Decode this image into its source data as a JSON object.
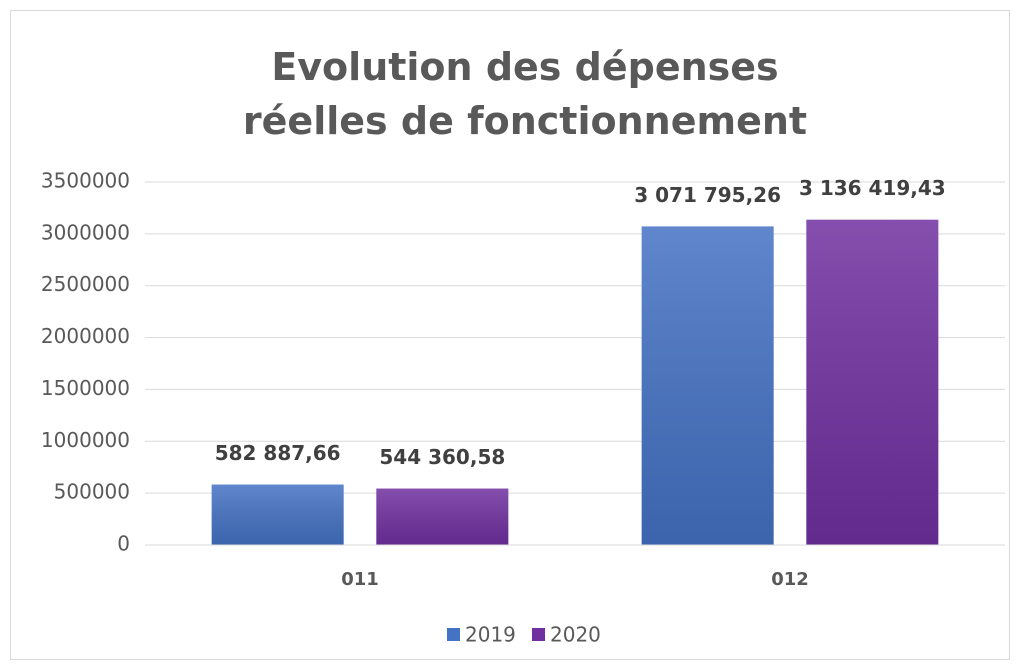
{
  "chart_data": {
    "type": "bar",
    "title": "Evolution des dépenses réelles de fonctionnement",
    "categories": [
      "011",
      "012"
    ],
    "series": [
      {
        "name": "2019",
        "color": "#4472c4",
        "values": [
          582887.66,
          3071795.26
        ],
        "value_labels": [
          "582 887,66",
          "3 071 795,26"
        ]
      },
      {
        "name": "2020",
        "color": "#7030a0",
        "values": [
          544360.58,
          3136419.43
        ],
        "value_labels": [
          "544 360,58",
          "3 136 419,43"
        ]
      }
    ],
    "ylim": [
      0,
      3500000
    ],
    "yticks": [
      0,
      500000,
      1000000,
      1500000,
      2000000,
      2500000,
      3000000,
      3500000
    ],
    "grid": true,
    "legend": "bottom"
  }
}
